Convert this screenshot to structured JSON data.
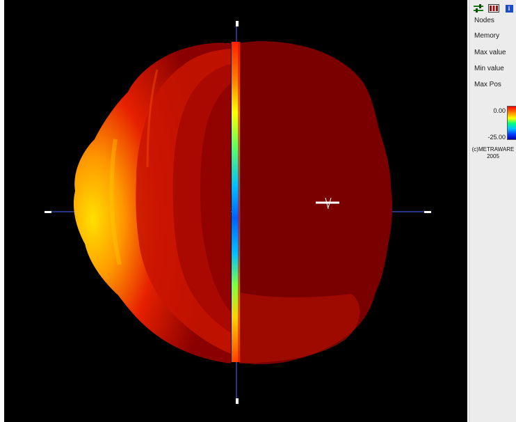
{
  "toolbar": {
    "icons": [
      "settings-sliders-icon",
      "battery-display-icon",
      "info-icon"
    ],
    "info_glyph": "i"
  },
  "info_panel": {
    "nodes_label": "Nodes",
    "memory_label": "Memory",
    "max_value_label": "Max value",
    "min_value_label": "Min value",
    "max_pos_label": "Max Pos"
  },
  "color_scale": {
    "max": "0.00",
    "min": "-25.00",
    "colors": [
      "#ff0000",
      "#ff8000",
      "#ffff00",
      "#00ff80",
      "#00c0ff",
      "#0040ff",
      "#0000b0"
    ]
  },
  "copyright": {
    "line1": "(c)METRAWARE",
    "line2": "2005"
  },
  "view": {
    "background": "#000000",
    "model_colors": {
      "dark": "#7a0000",
      "red": "#e01a00",
      "orange": "#ff6a00",
      "yellow": "#ffd000"
    },
    "axis_color": "#4a6aff"
  }
}
